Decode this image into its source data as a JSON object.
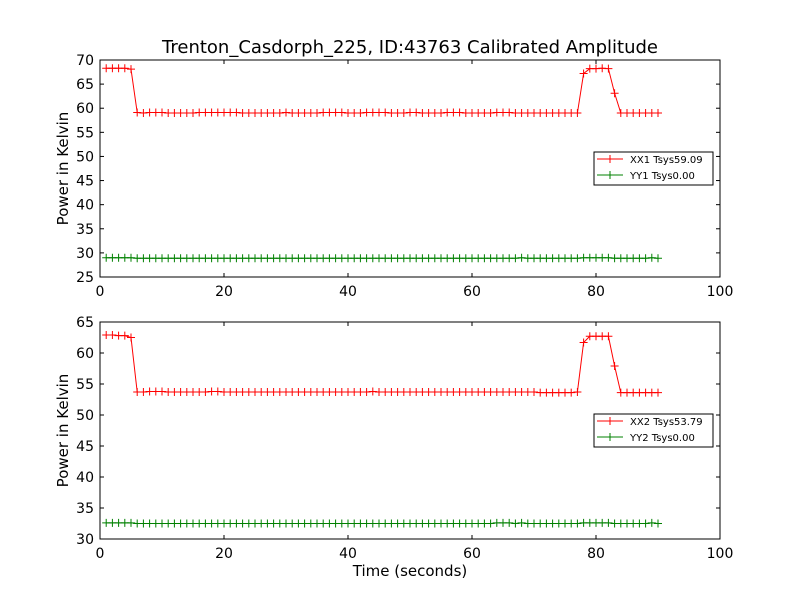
{
  "title": "Trenton_Casdorph_225, ID:43763 Calibrated Amplitude",
  "chart_data": [
    {
      "type": "line",
      "title": "Trenton_Casdorph_225, ID:43763 Calibrated Amplitude",
      "xlabel": "",
      "ylabel": "Power in Kelvin",
      "xlim": [
        0,
        100
      ],
      "ylim": [
        25,
        70
      ],
      "xticks": [
        0,
        20,
        40,
        60,
        80,
        100
      ],
      "yticks": [
        25,
        30,
        35,
        40,
        45,
        50,
        55,
        60,
        65,
        70
      ],
      "legend_position": "right",
      "series": [
        {
          "name": "XX1 Tsys59.09",
          "color": "#ff0000",
          "marker": "+",
          "x": [
            1,
            2,
            3,
            4,
            5,
            6,
            7,
            8,
            9,
            10,
            11,
            12,
            13,
            14,
            15,
            16,
            17,
            18,
            19,
            20,
            21,
            22,
            23,
            24,
            25,
            26,
            27,
            28,
            29,
            30,
            31,
            32,
            33,
            34,
            35,
            36,
            37,
            38,
            39,
            40,
            41,
            42,
            43,
            44,
            45,
            46,
            47,
            48,
            49,
            50,
            51,
            52,
            53,
            54,
            55,
            56,
            57,
            58,
            59,
            60,
            61,
            62,
            63,
            64,
            65,
            66,
            67,
            68,
            69,
            70,
            71,
            72,
            73,
            74,
            75,
            76,
            77,
            78,
            79,
            80,
            81,
            82,
            83,
            84,
            85,
            86,
            87,
            88,
            89,
            90
          ],
          "y": [
            68.3,
            68.3,
            68.3,
            68.3,
            68.1,
            59.1,
            59.0,
            59.1,
            59.1,
            59.1,
            59.0,
            59.0,
            59.0,
            59.0,
            59.0,
            59.1,
            59.1,
            59.1,
            59.1,
            59.1,
            59.1,
            59.1,
            59.0,
            59.0,
            59.0,
            59.0,
            59.0,
            59.0,
            59.0,
            59.1,
            59.0,
            59.0,
            59.0,
            59.0,
            59.0,
            59.1,
            59.1,
            59.1,
            59.1,
            59.0,
            59.0,
            59.0,
            59.1,
            59.1,
            59.1,
            59.1,
            59.0,
            59.0,
            59.0,
            59.1,
            59.1,
            59.0,
            59.0,
            59.0,
            59.0,
            59.1,
            59.1,
            59.1,
            59.0,
            59.0,
            59.0,
            59.0,
            59.0,
            59.1,
            59.1,
            59.1,
            59.0,
            59.0,
            59.0,
            59.0,
            59.0,
            59.0,
            59.0,
            59.0,
            59.0,
            59.0,
            59.0,
            67.2,
            68.2,
            68.2,
            68.3,
            68.2,
            63.1,
            59.0,
            59.0,
            59.0,
            59.0,
            59.0,
            59.0,
            59.0
          ]
        },
        {
          "name": "YY1 Tsys0.00",
          "color": "#008000",
          "marker": "+",
          "x": [
            1,
            2,
            3,
            4,
            5,
            6,
            7,
            8,
            9,
            10,
            11,
            12,
            13,
            14,
            15,
            16,
            17,
            18,
            19,
            20,
            21,
            22,
            23,
            24,
            25,
            26,
            27,
            28,
            29,
            30,
            31,
            32,
            33,
            34,
            35,
            36,
            37,
            38,
            39,
            40,
            41,
            42,
            43,
            44,
            45,
            46,
            47,
            48,
            49,
            50,
            51,
            52,
            53,
            54,
            55,
            56,
            57,
            58,
            59,
            60,
            61,
            62,
            63,
            64,
            65,
            66,
            67,
            68,
            69,
            70,
            71,
            72,
            73,
            74,
            75,
            76,
            77,
            78,
            79,
            80,
            81,
            82,
            83,
            84,
            85,
            86,
            87,
            88,
            89,
            90
          ],
          "y": [
            29.0,
            29.0,
            29.0,
            29.0,
            29.0,
            28.9,
            28.9,
            28.9,
            28.9,
            28.9,
            28.9,
            28.9,
            28.9,
            28.9,
            28.9,
            28.9,
            28.9,
            28.9,
            28.9,
            28.9,
            28.9,
            28.9,
            28.9,
            28.9,
            28.9,
            28.9,
            28.9,
            28.9,
            28.9,
            28.9,
            28.9,
            28.9,
            28.9,
            28.9,
            28.9,
            28.9,
            28.9,
            28.9,
            28.9,
            28.9,
            28.9,
            28.9,
            28.9,
            28.9,
            28.9,
            28.9,
            28.9,
            28.9,
            28.9,
            28.9,
            28.9,
            28.9,
            28.9,
            28.9,
            28.9,
            28.9,
            28.9,
            28.9,
            28.9,
            28.9,
            28.9,
            28.9,
            28.9,
            28.9,
            28.9,
            28.9,
            28.9,
            29.0,
            28.9,
            28.9,
            28.9,
            28.9,
            28.9,
            28.9,
            28.9,
            28.9,
            28.9,
            29.0,
            29.0,
            29.0,
            29.0,
            29.0,
            28.9,
            28.9,
            28.9,
            28.9,
            28.9,
            28.9,
            29.0,
            28.9
          ]
        }
      ]
    },
    {
      "type": "line",
      "title": "",
      "xlabel": "Time (seconds)",
      "ylabel": "Power in Kelvin",
      "xlim": [
        0,
        100
      ],
      "ylim": [
        30,
        65
      ],
      "xticks": [
        0,
        20,
        40,
        60,
        80,
        100
      ],
      "yticks": [
        30,
        35,
        40,
        45,
        50,
        55,
        60,
        65
      ],
      "legend_position": "right",
      "series": [
        {
          "name": "XX2 Tsys53.79",
          "color": "#ff0000",
          "marker": "+",
          "x": [
            1,
            2,
            3,
            4,
            5,
            6,
            7,
            8,
            9,
            10,
            11,
            12,
            13,
            14,
            15,
            16,
            17,
            18,
            19,
            20,
            21,
            22,
            23,
            24,
            25,
            26,
            27,
            28,
            29,
            30,
            31,
            32,
            33,
            34,
            35,
            36,
            37,
            38,
            39,
            40,
            41,
            42,
            43,
            44,
            45,
            46,
            47,
            48,
            49,
            50,
            51,
            52,
            53,
            54,
            55,
            56,
            57,
            58,
            59,
            60,
            61,
            62,
            63,
            64,
            65,
            66,
            67,
            68,
            69,
            70,
            71,
            72,
            73,
            74,
            75,
            76,
            77,
            78,
            79,
            80,
            81,
            82,
            83,
            84,
            85,
            86,
            87,
            88,
            89,
            90
          ],
          "y": [
            62.9,
            62.9,
            62.8,
            62.8,
            62.5,
            53.7,
            53.7,
            53.8,
            53.8,
            53.8,
            53.7,
            53.7,
            53.7,
            53.7,
            53.7,
            53.7,
            53.7,
            53.8,
            53.8,
            53.7,
            53.7,
            53.7,
            53.7,
            53.7,
            53.7,
            53.7,
            53.7,
            53.7,
            53.7,
            53.7,
            53.7,
            53.7,
            53.7,
            53.7,
            53.7,
            53.7,
            53.7,
            53.7,
            53.7,
            53.7,
            53.7,
            53.7,
            53.7,
            53.8,
            53.7,
            53.7,
            53.7,
            53.7,
            53.7,
            53.7,
            53.7,
            53.7,
            53.7,
            53.7,
            53.7,
            53.7,
            53.7,
            53.7,
            53.7,
            53.7,
            53.7,
            53.7,
            53.7,
            53.7,
            53.7,
            53.7,
            53.7,
            53.7,
            53.7,
            53.7,
            53.6,
            53.6,
            53.6,
            53.6,
            53.6,
            53.6,
            53.7,
            61.7,
            62.7,
            62.7,
            62.7,
            62.7,
            57.9,
            53.6,
            53.6,
            53.6,
            53.6,
            53.6,
            53.6,
            53.6
          ]
        },
        {
          "name": "YY2 Tsys0.00",
          "color": "#008000",
          "marker": "+",
          "x": [
            1,
            2,
            3,
            4,
            5,
            6,
            7,
            8,
            9,
            10,
            11,
            12,
            13,
            14,
            15,
            16,
            17,
            18,
            19,
            20,
            21,
            22,
            23,
            24,
            25,
            26,
            27,
            28,
            29,
            30,
            31,
            32,
            33,
            34,
            35,
            36,
            37,
            38,
            39,
            40,
            41,
            42,
            43,
            44,
            45,
            46,
            47,
            48,
            49,
            50,
            51,
            52,
            53,
            54,
            55,
            56,
            57,
            58,
            59,
            60,
            61,
            62,
            63,
            64,
            65,
            66,
            67,
            68,
            69,
            70,
            71,
            72,
            73,
            74,
            75,
            76,
            77,
            78,
            79,
            80,
            81,
            82,
            83,
            84,
            85,
            86,
            87,
            88,
            89,
            90
          ],
          "y": [
            32.6,
            32.6,
            32.6,
            32.6,
            32.6,
            32.5,
            32.5,
            32.5,
            32.5,
            32.5,
            32.5,
            32.5,
            32.5,
            32.5,
            32.5,
            32.5,
            32.5,
            32.5,
            32.5,
            32.5,
            32.5,
            32.5,
            32.5,
            32.5,
            32.5,
            32.5,
            32.5,
            32.5,
            32.5,
            32.5,
            32.5,
            32.5,
            32.5,
            32.5,
            32.5,
            32.5,
            32.5,
            32.5,
            32.5,
            32.5,
            32.5,
            32.5,
            32.5,
            32.5,
            32.5,
            32.5,
            32.5,
            32.5,
            32.5,
            32.5,
            32.5,
            32.5,
            32.5,
            32.5,
            32.5,
            32.5,
            32.5,
            32.5,
            32.5,
            32.5,
            32.5,
            32.5,
            32.5,
            32.6,
            32.6,
            32.6,
            32.5,
            32.6,
            32.5,
            32.5,
            32.5,
            32.5,
            32.5,
            32.5,
            32.5,
            32.5,
            32.5,
            32.6,
            32.6,
            32.6,
            32.6,
            32.6,
            32.5,
            32.5,
            32.5,
            32.5,
            32.5,
            32.5,
            32.6,
            32.5
          ]
        }
      ]
    }
  ]
}
